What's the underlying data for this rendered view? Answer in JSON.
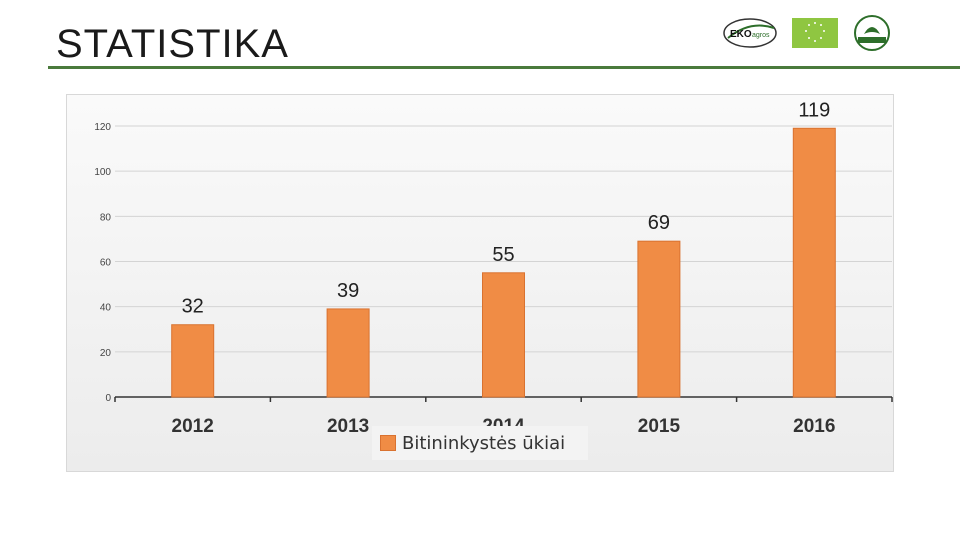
{
  "slide": {
    "title": "STATISTIKA"
  },
  "logos": [
    {
      "name": "ekoagros-logo",
      "text": "EKOagros"
    },
    {
      "name": "eu-organic-leaf-logo"
    },
    {
      "name": "green-certification-logo"
    }
  ],
  "colors": {
    "accent_rule": "#4a7a3c",
    "bar_fill": "#f08c45",
    "bar_stroke": "#d97230"
  },
  "chart_data": {
    "type": "bar",
    "categories": [
      "2012",
      "2013",
      "2014",
      "2015",
      "2016"
    ],
    "series": [
      {
        "name": "Bitininkystės ūkiai",
        "values": [
          32,
          39,
          55,
          69,
          119
        ]
      }
    ],
    "ylim": [
      0,
      120
    ],
    "yticks": [
      "0",
      "20",
      "40",
      "60",
      "80",
      "100",
      "120"
    ],
    "data_labels": [
      "32",
      "39",
      "55",
      "69",
      "119"
    ],
    "grid": true,
    "legend_position": "bottom"
  }
}
